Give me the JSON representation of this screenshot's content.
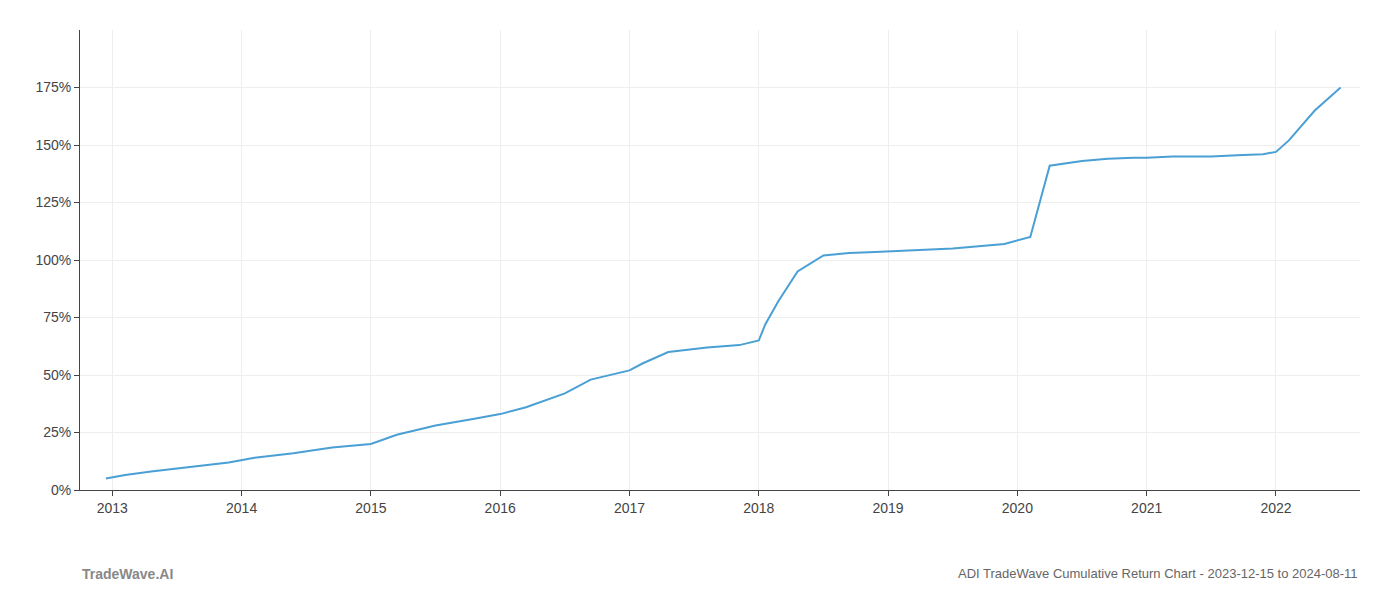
{
  "chart_data": {
    "type": "line",
    "title": "ADI TradeWave Cumulative Return Chart - 2023-12-15 to 2024-08-11",
    "annotations": [
      "TradeWave.AI"
    ],
    "x": [
      2012.95,
      2013.1,
      2013.3,
      2013.6,
      2013.9,
      2014.1,
      2014.4,
      2014.7,
      2015.0,
      2015.2,
      2015.5,
      2015.8,
      2016.0,
      2016.2,
      2016.5,
      2016.7,
      2017.0,
      2017.1,
      2017.3,
      2017.6,
      2017.85,
      2018.0,
      2018.05,
      2018.15,
      2018.3,
      2018.5,
      2018.7,
      2018.9,
      2019.1,
      2019.3,
      2019.5,
      2019.7,
      2019.9,
      2020.1,
      2020.25,
      2020.5,
      2020.7,
      2020.9,
      2021.0,
      2021.2,
      2021.5,
      2021.7,
      2021.9,
      2022.0,
      2022.1,
      2022.3,
      2022.5
    ],
    "values": [
      5.0,
      6.5,
      8.0,
      10.0,
      12.0,
      14.0,
      16.0,
      18.5,
      20.0,
      24.0,
      28.0,
      31.0,
      33.0,
      36.0,
      42.0,
      48.0,
      52.0,
      55.0,
      60.0,
      62.0,
      63.0,
      65.0,
      72.0,
      82.0,
      95.0,
      102.0,
      103.0,
      103.5,
      104.0,
      104.5,
      105.0,
      106.0,
      107.0,
      110.0,
      141.0,
      143.0,
      144.0,
      144.5,
      144.5,
      145.0,
      145.0,
      145.5,
      146.0,
      147.0,
      152.0,
      165.0,
      175.0
    ],
    "color": "#4a9fd4",
    "xlim": [
      2012.75,
      2022.65
    ],
    "xticks": [
      2013,
      2014,
      2015,
      2016,
      2017,
      2018,
      2019,
      2020,
      2021,
      2022
    ],
    "ylim": [
      0,
      200
    ],
    "yticks": [
      {
        "value": 0,
        "label": "0%"
      },
      {
        "value": 25,
        "label": "25%"
      },
      {
        "value": 50,
        "label": "50%"
      },
      {
        "value": 75,
        "label": "75%"
      },
      {
        "value": 100,
        "label": "100%"
      },
      {
        "value": 125,
        "label": "125%"
      },
      {
        "value": 150,
        "label": "150%"
      },
      {
        "value": 175,
        "label": "175%"
      }
    ],
    "grid": true
  }
}
